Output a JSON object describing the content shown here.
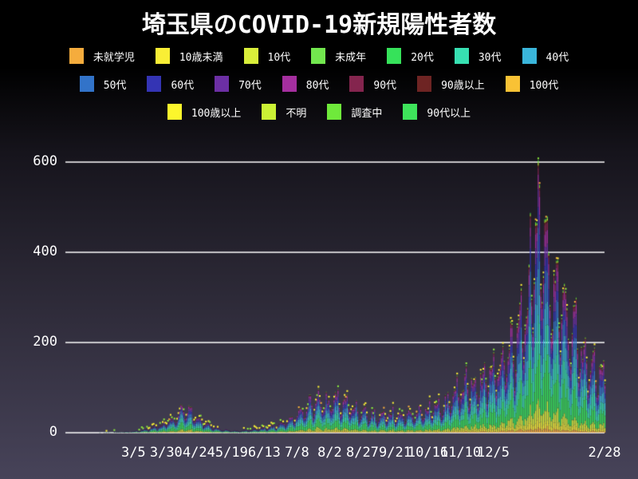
{
  "title": "埼玉県のCOVID-19新規陽性者数",
  "chart_data": {
    "type": "bar",
    "subtype": "stacked-daily-bars",
    "title": "埼玉県のCOVID-19新規陽性者数",
    "ylabel": "",
    "xlabel": "",
    "ylim": [
      0,
      620
    ],
    "yticks": [
      "0",
      "200",
      "400",
      "600"
    ],
    "ytick_values": [
      0,
      200,
      400,
      600
    ],
    "grid": true,
    "gridline_color": "#f2f2f2",
    "background_gradient": [
      "#000000",
      "#474359"
    ],
    "total_days": 413,
    "x_ticks": [
      {
        "label": "3/5",
        "day": 52
      },
      {
        "label": "3/30",
        "day": 77
      },
      {
        "label": "4/24",
        "day": 102
      },
      {
        "label": "5/19",
        "day": 127
      },
      {
        "label": "6/13",
        "day": 152
      },
      {
        "label": "7/8",
        "day": 177
      },
      {
        "label": "8/2",
        "day": 202
      },
      {
        "label": "8/27",
        "day": 227
      },
      {
        "label": "9/21",
        "day": 252
      },
      {
        "label": "10/16",
        "day": 277
      },
      {
        "label": "11/10",
        "day": 302
      },
      {
        "label": "12/5",
        "day": 327
      },
      {
        "label": "2/28",
        "day": 412
      }
    ],
    "series": [
      {
        "label": "未就学児",
        "color": "#F5AC3D",
        "share": 2.0
      },
      {
        "label": "10歳未満",
        "color": "#F9EE35",
        "share": 3.5
      },
      {
        "label": "10代",
        "color": "#D9EE3A",
        "share": 6.0
      },
      {
        "label": "未成年",
        "color": "#72E74E",
        "share": 0.5
      },
      {
        "label": "20代",
        "color": "#36E25A",
        "share": 19.5
      },
      {
        "label": "30代",
        "color": "#37E0B2",
        "share": 15.0
      },
      {
        "label": "40代",
        "color": "#3AB6DB",
        "share": 13.5
      },
      {
        "label": "50代",
        "color": "#3273C9",
        "share": 12.5
      },
      {
        "label": "60代",
        "color": "#3434B4",
        "share": 8.0
      },
      {
        "label": "70代",
        "color": "#6C2FA4",
        "share": 7.5
      },
      {
        "label": "80代",
        "color": "#A52F9F",
        "share": 6.5
      },
      {
        "label": "90代",
        "color": "#84254E",
        "share": 3.0
      },
      {
        "label": "90歳以上",
        "color": "#6E2423",
        "share": 0.8
      },
      {
        "label": "100代",
        "color": "#F9C235",
        "share": 0.1
      },
      {
        "label": "100歳以上",
        "color": "#FCF62C",
        "share": 0.1
      },
      {
        "label": "不明",
        "color": "#CBF235",
        "share": 0.6
      },
      {
        "label": "調査中",
        "color": "#6FE93B",
        "share": 0.7
      },
      {
        "label": "90代以上",
        "color": "#3EE45B",
        "share": 0.2
      }
    ],
    "legend_rows": [
      7,
      7,
      4
    ],
    "daily_total_anchors": [
      [
        0,
        0
      ],
      [
        14,
        0
      ],
      [
        26,
        0.5
      ],
      [
        36,
        1
      ],
      [
        44,
        2
      ],
      [
        52,
        3
      ],
      [
        60,
        6
      ],
      [
        68,
        12
      ],
      [
        76,
        20
      ],
      [
        83,
        32
      ],
      [
        88,
        45
      ],
      [
        93,
        50
      ],
      [
        98,
        38
      ],
      [
        104,
        24
      ],
      [
        110,
        14
      ],
      [
        117,
        8
      ],
      [
        124,
        5
      ],
      [
        131,
        4
      ],
      [
        138,
        5
      ],
      [
        145,
        7
      ],
      [
        152,
        10
      ],
      [
        159,
        14
      ],
      [
        166,
        20
      ],
      [
        173,
        30
      ],
      [
        180,
        46
      ],
      [
        187,
        62
      ],
      [
        193,
        72
      ],
      [
        199,
        68
      ],
      [
        206,
        74
      ],
      [
        212,
        62
      ],
      [
        218,
        56
      ],
      [
        224,
        48
      ],
      [
        231,
        40
      ],
      [
        238,
        35
      ],
      [
        245,
        37
      ],
      [
        252,
        41
      ],
      [
        259,
        38
      ],
      [
        266,
        43
      ],
      [
        273,
        46
      ],
      [
        280,
        52
      ],
      [
        287,
        60
      ],
      [
        294,
        72
      ],
      [
        301,
        88
      ],
      [
        308,
        102
      ],
      [
        315,
        112
      ],
      [
        322,
        128
      ],
      [
        329,
        142
      ],
      [
        336,
        162
      ],
      [
        343,
        188
      ],
      [
        350,
        235
      ],
      [
        356,
        340
      ],
      [
        360,
        445
      ],
      [
        364,
        430
      ],
      [
        368,
        385
      ],
      [
        372,
        340
      ],
      [
        376,
        305
      ],
      [
        381,
        265
      ],
      [
        386,
        225
      ],
      [
        391,
        192
      ],
      [
        396,
        168
      ],
      [
        401,
        148
      ],
      [
        406,
        132
      ],
      [
        412,
        118
      ]
    ],
    "weekday_factors": [
      0.6,
      0.78,
      1.02,
      1.14,
      1.2,
      1.3,
      0.88
    ],
    "peak_value": 610,
    "peak_day": 360,
    "marker_colors": [
      "#F9EE35",
      "#8BE93B",
      "#F5AC3D"
    ]
  }
}
